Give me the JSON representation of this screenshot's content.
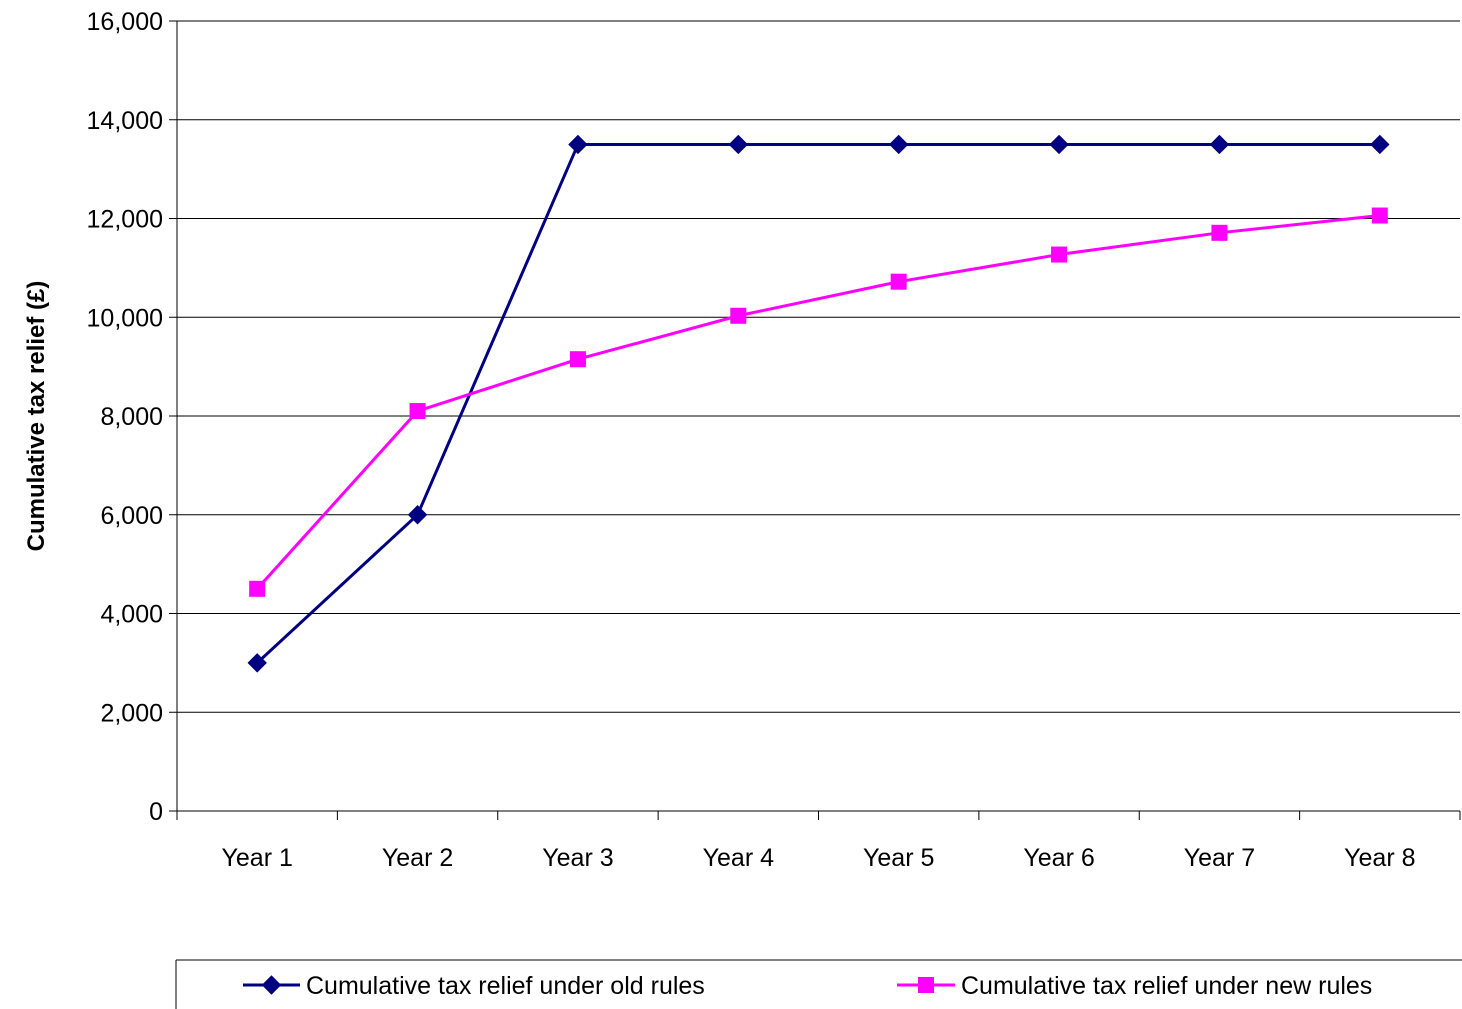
{
  "chart_data": {
    "type": "line",
    "title": "",
    "xlabel": "",
    "ylabel": "Cumulative tax relief (£)",
    "categories": [
      "Year 1",
      "Year 2",
      "Year 3",
      "Year 4",
      "Year 5",
      "Year 6",
      "Year 7",
      "Year 8"
    ],
    "ylim": [
      0,
      16000
    ],
    "yticks": [
      0,
      2000,
      4000,
      6000,
      8000,
      10000,
      12000,
      14000,
      16000
    ],
    "ytick_labels": [
      "0",
      "2,000",
      "4,000",
      "6,000",
      "8,000",
      "10,000",
      "12,000",
      "14,000",
      "16,000"
    ],
    "grid": true,
    "legend_position": "bottom",
    "series": [
      {
        "name": "Cumulative tax relief under old rules",
        "values": [
          3000,
          6000,
          13500,
          13500,
          13500,
          13500,
          13500,
          13500
        ],
        "color": "#000080",
        "marker": "diamond"
      },
      {
        "name": "Cumulative tax relief under new rules",
        "values": [
          4500,
          8100,
          9150,
          10030,
          10720,
          11270,
          11710,
          12060
        ],
        "color": "#FF00FF",
        "marker": "square"
      }
    ]
  }
}
